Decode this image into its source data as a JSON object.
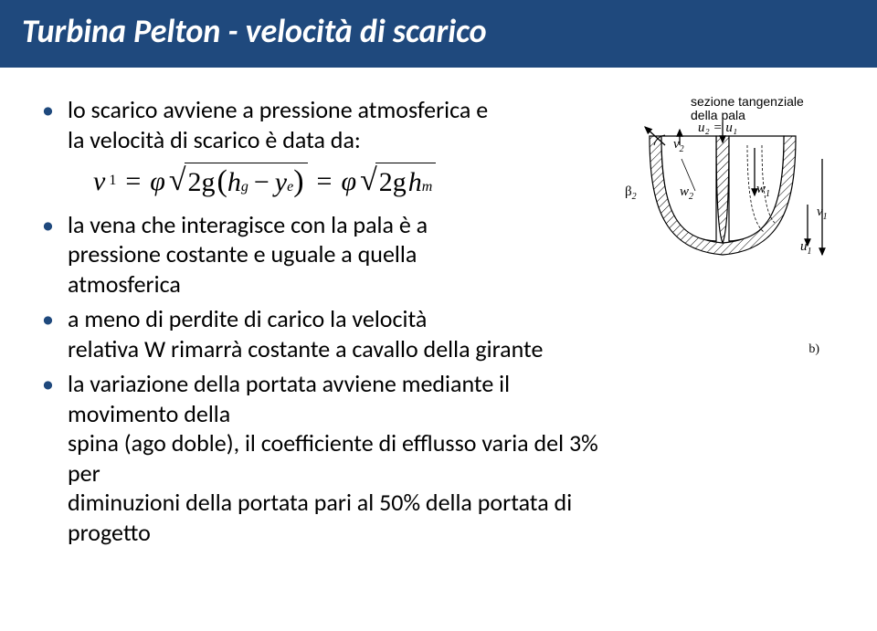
{
  "slide": {
    "title": "Turbina Pelton - velocità di scarico",
    "title_fontsize": 36,
    "title_bar_color": "#1f497d",
    "body_fontsize": 26,
    "bullet_color": "#1f497d",
    "text_color": "#000000",
    "background_color": "#ffffff"
  },
  "bullets": {
    "b1_l1": "lo scarico avviene a pressione atmosferica e",
    "b1_l2": "la velocità di scarico è data da:",
    "b2_l1": "la vena che interagisce con la pala è a",
    "b2_l2": "pressione costante e uguale a quella",
    "b2_l3": "atmosferica",
    "b3_l1": "a meno di perdite di carico la velocità",
    "b3_l2": "relativa W rimarrà costante a cavallo della girante",
    "b4_l1": "la variazione della portata avviene mediante il movimento della",
    "b4_l2": "spina (ago doble), il coefficiente di efflusso varia del 3% per",
    "b4_l3": "diminuzioni della portata pari al 50% della portata di progetto"
  },
  "formula": {
    "v": "v",
    "one": "1",
    "eq": "=",
    "phi": "φ",
    "two_g": "2g",
    "h": "h",
    "g": "g",
    "minus": "−",
    "y": "y",
    "e": "e",
    "m": "m"
  },
  "diagram": {
    "caption_l1": "sezione tangenziale",
    "caption_l2": "della pala",
    "u2_eq_u1": "u₂ = u₁",
    "v2": "v",
    "v2s": "2",
    "beta2": "β",
    "beta2s": "2",
    "w2": "w",
    "w2s": "2",
    "w1": "w",
    "w1s": "1",
    "u1": "u",
    "u1s": "1",
    "v1": "v",
    "v1s": "1",
    "panel": "b)",
    "stroke": "#000000",
    "hatch": "#000000"
  }
}
